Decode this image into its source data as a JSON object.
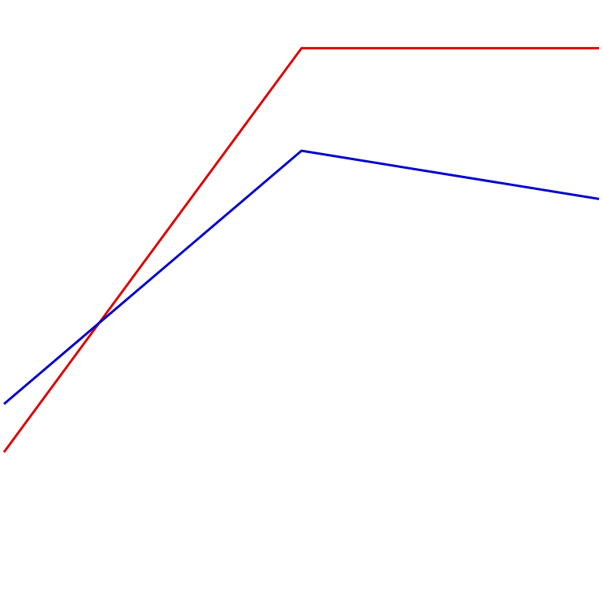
{
  "chart_data": {
    "type": "line",
    "title": "",
    "xlabel": "",
    "ylabel": "",
    "grid": false,
    "legend": "none",
    "x": [
      0,
      1,
      2
    ],
    "xlim": [
      0,
      2
    ],
    "ylim": [
      0,
      1
    ],
    "series": [
      {
        "color": "#dd0000",
        "values": [
          0.25,
          0.92,
          0.92
        ]
      },
      {
        "color": "#0000cc",
        "values": [
          0.33,
          0.75,
          0.67
        ]
      }
    ]
  }
}
